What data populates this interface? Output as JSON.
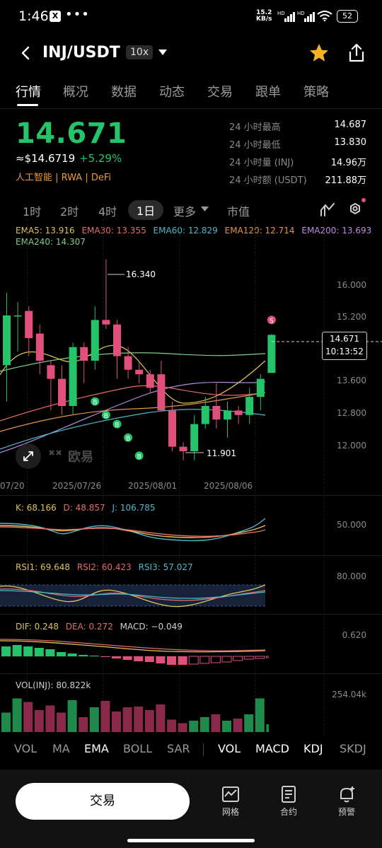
{
  "status_bar": {
    "time": "1:46",
    "x_badge": "X",
    "dots": "•••",
    "net_speed": "15.2",
    "net_unit": "KB/s",
    "signal1": "HD",
    "signal2": "HD",
    "battery": "52"
  },
  "header": {
    "back_icon": "chevron-left-icon",
    "pair": "INJ/USDT",
    "leverage": "10x",
    "star_icon": "star-icon",
    "share_icon": "share-icon"
  },
  "tabs": [
    "行情",
    "概况",
    "数据",
    "动态",
    "交易",
    "跟单",
    "策略"
  ],
  "price": {
    "last": "14.671",
    "usd": "≈$14.6719",
    "change": "+5.29%",
    "tags": "人工智能 | RWA | DeFi"
  },
  "stats": [
    {
      "label": "24 小时最高",
      "value": "14.687"
    },
    {
      "label": "24 小时最低",
      "value": "13.830"
    },
    {
      "label": "24 小时量 (INJ)",
      "value": "14.96万"
    },
    {
      "label": "24 小时额 (USDT)",
      "value": "211.88万"
    }
  ],
  "timeframes": {
    "items": [
      "1时",
      "2时",
      "4时",
      "1日",
      "更多",
      "市值"
    ],
    "selected": "1日"
  },
  "ema_legend": [
    {
      "text": "EMA5: 13.916",
      "color": "#e0c25a"
    },
    {
      "text": "EMA30: 13.355",
      "color": "#e26b6b"
    },
    {
      "text": "EMA60: 12.829",
      "color": "#4fb7c9"
    },
    {
      "text": "EMA120: 12.714",
      "color": "#e2934a"
    },
    {
      "text": "EMA200: 13.693",
      "color": "#b98de0"
    },
    {
      "text": "EMA240: 14.307",
      "color": "#7fcf8a"
    }
  ],
  "main_chart": {
    "price_axis": [
      "16.000",
      "15.200",
      "13.600",
      "12.800",
      "12.000"
    ],
    "high_label": "16.340",
    "low_label": "11.901",
    "current_price": "14.671",
    "countdown": "10:13:52",
    "dates": [
      "07/20",
      "2025/07/26",
      "2025/08/01",
      "2025/08/06"
    ],
    "watermark": "欧易",
    "buy_marker": "B",
    "sell_marker": "S"
  },
  "chart_data": {
    "type": "candlestick",
    "candles": [
      {
        "o": 14.0,
        "h": 15.6,
        "l": 13.2,
        "c": 15.1
      },
      {
        "o": 15.1,
        "h": 15.4,
        "l": 14.3,
        "c": 15.1
      },
      {
        "o": 15.2,
        "h": 15.3,
        "l": 14.2,
        "c": 14.6
      },
      {
        "o": 14.7,
        "h": 14.9,
        "l": 13.8,
        "c": 14.1
      },
      {
        "o": 14.0,
        "h": 14.1,
        "l": 13.0,
        "c": 13.7
      },
      {
        "o": 13.7,
        "h": 14.0,
        "l": 12.9,
        "c": 13.1
      },
      {
        "o": 13.1,
        "h": 14.5,
        "l": 12.9,
        "c": 14.4
      },
      {
        "o": 14.4,
        "h": 14.5,
        "l": 13.6,
        "c": 14.1
      },
      {
        "o": 14.1,
        "h": 15.3,
        "l": 13.9,
        "c": 15.0
      },
      {
        "o": 15.0,
        "h": 16.34,
        "l": 14.8,
        "c": 14.9
      },
      {
        "o": 14.9,
        "h": 15.0,
        "l": 13.7,
        "c": 14.2
      },
      {
        "o": 14.2,
        "h": 14.4,
        "l": 13.7,
        "c": 13.9
      },
      {
        "o": 13.9,
        "h": 14.1,
        "l": 13.6,
        "c": 13.8
      },
      {
        "o": 13.8,
        "h": 13.9,
        "l": 13.4,
        "c": 13.5
      },
      {
        "o": 13.8,
        "h": 14.1,
        "l": 13.0,
        "c": 13.0
      },
      {
        "o": 13.0,
        "h": 13.2,
        "l": 12.1,
        "c": 12.2
      },
      {
        "o": 12.2,
        "h": 12.3,
        "l": 11.9,
        "c": 12.1
      },
      {
        "o": 12.1,
        "h": 12.9,
        "l": 11.901,
        "c": 12.7
      },
      {
        "o": 12.7,
        "h": 13.3,
        "l": 12.6,
        "c": 13.1
      },
      {
        "o": 13.1,
        "h": 13.6,
        "l": 12.6,
        "c": 12.8
      },
      {
        "o": 12.8,
        "h": 13.2,
        "l": 12.4,
        "c": 13.0
      },
      {
        "o": 13.0,
        "h": 13.1,
        "l": 12.7,
        "c": 12.9
      },
      {
        "o": 12.9,
        "h": 13.5,
        "l": 12.7,
        "c": 13.3
      },
      {
        "o": 13.3,
        "h": 13.8,
        "l": 13.0,
        "c": 13.7
      },
      {
        "o": 13.83,
        "h": 14.687,
        "l": 13.83,
        "c": 14.671
      }
    ],
    "volume": [
      0.55,
      0.95,
      0.85,
      0.62,
      0.75,
      0.55,
      0.9,
      0.42,
      0.7,
      0.88,
      0.58,
      0.7,
      0.72,
      0.62,
      0.78,
      0.35,
      0.25,
      0.32,
      0.42,
      0.5,
      0.32,
      0.38,
      0.5,
      0.95,
      0.22
    ],
    "ylim": [
      11.6,
      16.6
    ]
  },
  "kdj": {
    "legend": [
      {
        "text": "K: 68.166",
        "color": "#e0c25a"
      },
      {
        "text": "D: 48.857",
        "color": "#e26b6b"
      },
      {
        "text": "J: 106.785",
        "color": "#4fb7c9"
      }
    ],
    "axis": "50.000"
  },
  "rsi": {
    "legend": [
      {
        "text": "RSI1: 69.648",
        "color": "#e0c25a"
      },
      {
        "text": "RSI2: 60.423",
        "color": "#e26b6b"
      },
      {
        "text": "RSI3: 57.027",
        "color": "#4fb7c9"
      }
    ],
    "axis": "80.000"
  },
  "macd": {
    "legend": [
      {
        "text": "DIF: 0.248",
        "color": "#e0c25a"
      },
      {
        "text": "DEA: 0.272",
        "color": "#e26b6b"
      },
      {
        "text": "MACD: −0.049",
        "color": "#cfcfcf"
      }
    ],
    "axis": "0.620"
  },
  "vol": {
    "legend": "VOL(INJ): 80.822k",
    "axis": "254.04k"
  },
  "indicator_tabs": {
    "main": [
      "VOL",
      "MA",
      "EMA",
      "BOLL",
      "SAR"
    ],
    "active_main": "EMA",
    "sub": [
      "VOL",
      "MACD",
      "KDJ",
      "SKDJ"
    ]
  },
  "bottom_bar": {
    "trade": "交易",
    "grid": "网格",
    "contract": "合约",
    "alert": "预警"
  },
  "colors": {
    "up": "#25c36a",
    "down": "#e0507b",
    "accent": "#e89a3c",
    "star": "#f5b324"
  }
}
